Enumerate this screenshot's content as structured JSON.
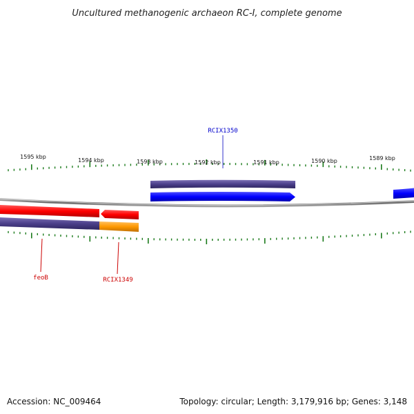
{
  "title": "Uncultured methanogenic archaeon RC-I, complete genome",
  "footer": {
    "accession": "Accession: NC_009464",
    "summary": "Topology: circular; Length: 3,179,916 bp; Genes: 3,148"
  },
  "scale": {
    "tick_labels": [
      "1595 kbp",
      "1594 kbp",
      "1593 kbp",
      "1592 kbp",
      "1591 kbp",
      "1590 kbp",
      "1589 kbp"
    ]
  },
  "genes": {
    "upper": [
      {
        "label": "RCIX1350",
        "color": "#0000cc"
      }
    ],
    "lower": [
      {
        "label": "feoB",
        "color": "#cc0000"
      },
      {
        "label": "RCIX1349",
        "color": "#cc0000"
      }
    ]
  },
  "colors": {
    "backbone": "#888888",
    "cds_purple": "#4b3f8a",
    "gene_blue": "#0000ff",
    "gene_red": "#ff0000",
    "gene_orange": "#ff9900",
    "tick_green": "#1a7a1a"
  }
}
